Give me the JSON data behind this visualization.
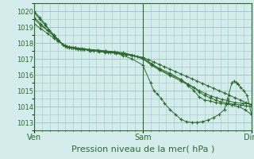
{
  "background_color": "#d4ecec",
  "plot_bg_color": "#d4ecec",
  "grid_color": "#a0c8c8",
  "line_color": "#2d6b2d",
  "marker_color": "#2d6b2d",
  "ylim": [
    1012.5,
    1020.5
  ],
  "yticks": [
    1013,
    1014,
    1015,
    1016,
    1017,
    1018,
    1019,
    1020
  ],
  "xlabel": "Pression niveau de la mer( hPa )",
  "xlabel_fontsize": 8,
  "xtick_labels": [
    "Ven",
    "Sam",
    "Dim"
  ],
  "xtick_positions": [
    0.0,
    1.0,
    2.0
  ],
  "lines": [
    [
      0.0,
      1019.9,
      0.05,
      1019.5,
      0.1,
      1019.1,
      0.18,
      1018.5,
      0.22,
      1018.2,
      0.28,
      1017.8,
      0.32,
      1017.75,
      0.36,
      1017.7,
      0.4,
      1017.65,
      0.45,
      1017.6,
      0.5,
      1017.55,
      0.55,
      1017.5,
      0.6,
      1017.45,
      0.65,
      1017.42,
      0.7,
      1017.38,
      0.75,
      1017.35,
      0.8,
      1017.3,
      0.85,
      1017.25,
      0.9,
      1017.2,
      0.95,
      1017.15,
      1.0,
      1017.1,
      1.05,
      1016.95,
      1.1,
      1016.8,
      1.15,
      1016.65,
      1.2,
      1016.5,
      1.25,
      1016.35,
      1.3,
      1016.2,
      1.35,
      1016.05,
      1.4,
      1015.9,
      1.45,
      1015.75,
      1.5,
      1015.6,
      1.55,
      1015.45,
      1.6,
      1015.3,
      1.65,
      1015.15,
      1.7,
      1015.0,
      1.75,
      1014.85,
      1.8,
      1014.7,
      1.85,
      1014.55,
      1.9,
      1014.4,
      1.95,
      1014.25,
      2.0,
      1014.1
    ],
    [
      0.0,
      1020.0,
      0.05,
      1019.6,
      0.1,
      1019.2,
      0.14,
      1018.8,
      0.18,
      1018.5,
      0.22,
      1018.2,
      0.26,
      1017.9,
      0.3,
      1017.75,
      0.34,
      1017.7,
      0.38,
      1017.65,
      0.42,
      1017.6,
      0.5,
      1017.55,
      0.58,
      1017.5,
      0.66,
      1017.45,
      0.74,
      1017.4,
      0.82,
      1017.2,
      0.9,
      1017.0,
      1.0,
      1016.6,
      1.07,
      1015.5,
      1.1,
      1015.0,
      1.13,
      1014.8,
      1.17,
      1014.5,
      1.2,
      1014.2,
      1.25,
      1013.8,
      1.3,
      1013.5,
      1.35,
      1013.2,
      1.4,
      1013.05,
      1.45,
      1013.0,
      1.5,
      1013.0,
      1.55,
      1013.05,
      1.6,
      1013.15,
      1.65,
      1013.3,
      1.7,
      1013.5,
      1.75,
      1013.8,
      1.78,
      1014.5,
      1.82,
      1015.5,
      1.84,
      1015.6,
      1.86,
      1015.5,
      1.88,
      1015.4,
      1.9,
      1015.2,
      1.93,
      1015.0,
      1.96,
      1014.7,
      2.0,
      1013.5
    ],
    [
      0.0,
      1019.5,
      0.06,
      1019.1,
      0.12,
      1018.8,
      0.18,
      1018.45,
      0.22,
      1018.15,
      0.28,
      1017.82,
      0.32,
      1017.72,
      0.36,
      1017.68,
      0.4,
      1017.62,
      0.46,
      1017.58,
      0.52,
      1017.52,
      0.6,
      1017.48,
      0.68,
      1017.42,
      0.76,
      1017.38,
      0.84,
      1017.3,
      0.92,
      1017.2,
      1.0,
      1017.05,
      1.08,
      1016.7,
      1.15,
      1016.4,
      1.25,
      1016.1,
      1.35,
      1015.7,
      1.42,
      1015.3,
      1.47,
      1015.0,
      1.52,
      1014.6,
      1.57,
      1014.4,
      1.62,
      1014.35,
      1.67,
      1014.25,
      1.72,
      1014.2,
      1.77,
      1014.15,
      1.82,
      1014.1,
      1.88,
      1014.0,
      1.94,
      1013.8,
      2.0,
      1013.5
    ],
    [
      0.0,
      1019.2,
      0.06,
      1018.9,
      0.12,
      1018.6,
      0.18,
      1018.3,
      0.22,
      1018.1,
      0.28,
      1017.85,
      0.32,
      1017.75,
      0.38,
      1017.7,
      0.44,
      1017.65,
      0.5,
      1017.6,
      0.58,
      1017.55,
      0.66,
      1017.5,
      0.74,
      1017.45,
      0.82,
      1017.38,
      0.9,
      1017.25,
      1.0,
      1017.0,
      1.08,
      1016.65,
      1.15,
      1016.35,
      1.25,
      1016.0,
      1.35,
      1015.7,
      1.42,
      1015.4,
      1.47,
      1015.2,
      1.52,
      1014.9,
      1.57,
      1014.7,
      1.62,
      1014.55,
      1.67,
      1014.4,
      1.72,
      1014.3,
      1.78,
      1014.22,
      1.84,
      1014.15,
      1.9,
      1014.1,
      1.95,
      1014.05,
      2.0,
      1014.0
    ],
    [
      0.0,
      1019.6,
      0.06,
      1019.2,
      0.12,
      1018.8,
      0.18,
      1018.42,
      0.22,
      1018.18,
      0.26,
      1017.9,
      0.3,
      1017.78,
      0.34,
      1017.72,
      0.38,
      1017.68,
      0.44,
      1017.62,
      0.5,
      1017.57,
      0.58,
      1017.52,
      0.66,
      1017.48,
      0.74,
      1017.42,
      0.82,
      1017.33,
      0.9,
      1017.22,
      1.0,
      1017.0,
      1.08,
      1016.6,
      1.15,
      1016.3,
      1.25,
      1015.95,
      1.35,
      1015.6,
      1.42,
      1015.35,
      1.47,
      1015.2,
      1.52,
      1015.0,
      1.58,
      1014.8,
      1.63,
      1014.65,
      1.68,
      1014.55,
      1.73,
      1014.45,
      1.79,
      1014.35,
      1.85,
      1014.25,
      1.92,
      1014.2,
      2.0,
      1014.15
    ]
  ],
  "vlines": [
    0.0,
    1.0,
    2.0
  ]
}
